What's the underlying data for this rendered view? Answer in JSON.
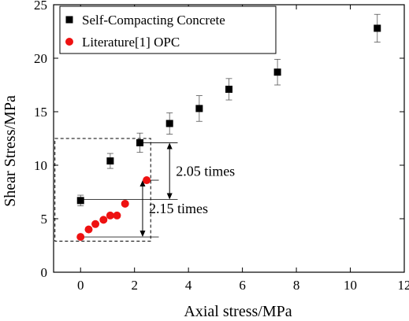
{
  "chart_data": {
    "type": "scatter",
    "xlabel": "Axial stress/MPa",
    "ylabel": "Shear Stress/MPa",
    "xlim": [
      -1,
      12
    ],
    "ylim": [
      0,
      25
    ],
    "xticks": [
      0,
      2,
      4,
      6,
      8,
      10,
      12
    ],
    "yticks": [
      0,
      5,
      10,
      15,
      20,
      25
    ],
    "grid": false,
    "legend_position": "top-left",
    "series": [
      {
        "name": "Self-Compacting Concrete",
        "marker": "square",
        "color": "#000000",
        "x": [
          0,
          1.1,
          2.2,
          3.3,
          4.4,
          5.5,
          7.3,
          11.0
        ],
        "y": [
          6.7,
          10.4,
          12.1,
          13.9,
          15.3,
          17.1,
          18.7,
          22.8
        ],
        "yerr": [
          0.5,
          0.7,
          0.9,
          1.0,
          1.2,
          1.0,
          1.2,
          1.3
        ]
      },
      {
        "name": "Literature[1] OPC",
        "marker": "circle",
        "color": "#ee1111",
        "x": [
          0,
          0.3,
          0.55,
          0.85,
          1.1,
          1.35,
          1.65,
          2.45
        ],
        "y": [
          3.3,
          4.0,
          4.5,
          4.9,
          5.3,
          5.3,
          6.4,
          8.6
        ]
      }
    ],
    "annotations": [
      {
        "text": "2.05 times",
        "from_y": 6.8,
        "to_y": 12.1,
        "arrow_x": 3.3
      },
      {
        "text": "2.15 times",
        "from_y": 3.3,
        "to_y": 8.6,
        "arrow_x": 2.3
      }
    ],
    "highlight_box": {
      "x": [
        -0.95,
        2.6
      ],
      "y": [
        2.9,
        12.5
      ]
    }
  }
}
